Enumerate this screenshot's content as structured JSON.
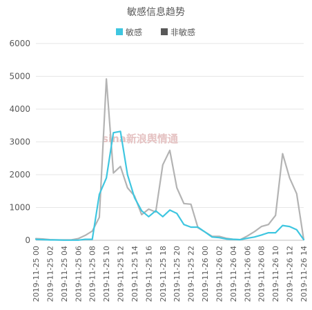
{
  "chart_data": {
    "type": "line",
    "title": "敏感信息趋势",
    "xlabel": "",
    "ylabel": "",
    "ylim": [
      0,
      6000
    ],
    "yticks": [
      0,
      1000,
      2000,
      3000,
      4000,
      5000,
      6000
    ],
    "grid": "horizontal",
    "legend_position": "top-center",
    "watermark": "sina新浪舆情通",
    "x": [
      "2019-11-25 00",
      "2019-11-25 01",
      "2019-11-25 02",
      "2019-11-25 03",
      "2019-11-25 04",
      "2019-11-25 05",
      "2019-11-25 06",
      "2019-11-25 07",
      "2019-11-25 08",
      "2019-11-25 09",
      "2019-11-25 10",
      "2019-11-25 11",
      "2019-11-25 12",
      "2019-11-25 13",
      "2019-11-25 14",
      "2019-11-25 15",
      "2019-11-25 16",
      "2019-11-25 17",
      "2019-11-25 18",
      "2019-11-25 19",
      "2019-11-25 20",
      "2019-11-25 21",
      "2019-11-25 22",
      "2019-11-25 23",
      "2019-11-26 00",
      "2019-11-26 01",
      "2019-11-26 02",
      "2019-11-26 03",
      "2019-11-26 04",
      "2019-11-26 05",
      "2019-11-26 06",
      "2019-11-26 07",
      "2019-11-26 08",
      "2019-11-26 09",
      "2019-11-26 10",
      "2019-11-26 11",
      "2019-11-26 12",
      "2019-11-26 13",
      "2019-11-26 14"
    ],
    "xtick_labels": [
      "2019-11-25 00",
      "2019-11-25 02",
      "2019-11-25 04",
      "2019-11-25 06",
      "2019-11-25 08",
      "2019-11-25 10",
      "2019-11-25 12",
      "2019-11-25 14",
      "2019-11-25 16",
      "2019-11-25 18",
      "2019-11-25 20",
      "2019-11-25 22",
      "2019-11-26 00",
      "2019-11-26 02",
      "2019-11-26 04",
      "2019-11-26 06",
      "2019-11-26 08",
      "2019-11-26 10",
      "2019-11-26 12",
      "2019-11-26 14"
    ],
    "series": [
      {
        "name": "敏感",
        "color": "#3ec6e0",
        "values": [
          30,
          20,
          10,
          10,
          5,
          5,
          5,
          30,
          30,
          1400,
          1900,
          3280,
          3320,
          2000,
          1300,
          900,
          720,
          900,
          720,
          920,
          820,
          480,
          400,
          400,
          250,
          100,
          80,
          40,
          30,
          20,
          60,
          100,
          160,
          230,
          230,
          450,
          420,
          320,
          20
        ]
      },
      {
        "name": "非敏感",
        "color": "#b3b3b3",
        "values": [
          50,
          40,
          20,
          10,
          10,
          10,
          50,
          150,
          280,
          700,
          4920,
          2050,
          2250,
          1600,
          1350,
          780,
          950,
          860,
          2300,
          2740,
          1600,
          1120,
          1100,
          380,
          250,
          120,
          120,
          60,
          30,
          20,
          130,
          260,
          420,
          480,
          760,
          2640,
          1900,
          1420,
          20
        ]
      }
    ]
  }
}
